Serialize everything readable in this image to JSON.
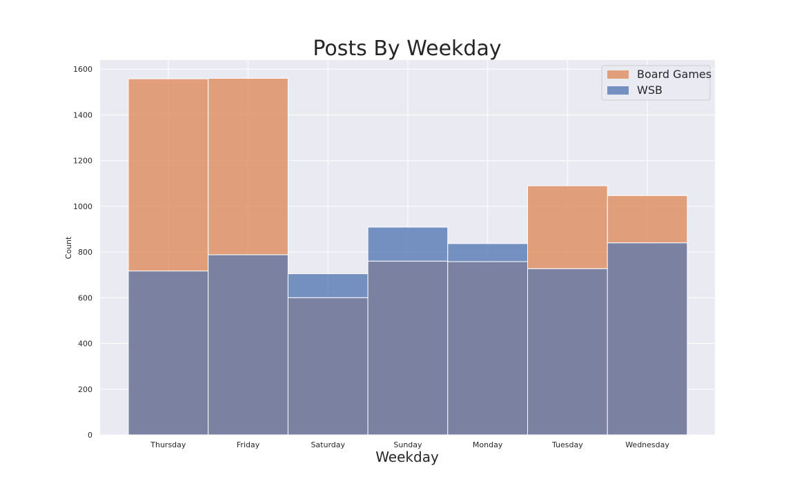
{
  "chart_data": {
    "type": "bar",
    "title": "Posts By Weekday",
    "xlabel": "Weekday",
    "ylabel": "Count",
    "categories": [
      "Thursday",
      "Friday",
      "Saturday",
      "Sunday",
      "Monday",
      "Tuesday",
      "Wednesday"
    ],
    "series": [
      {
        "name": "Board Games",
        "color": "#dd8452",
        "values": [
          1558,
          1560,
          600,
          760,
          758,
          1090,
          1047
        ]
      },
      {
        "name": "WSB",
        "color": "#4c72b0",
        "values": [
          717,
          788,
          705,
          909,
          837,
          727,
          840
        ]
      }
    ],
    "ylim": [
      0,
      1640
    ],
    "yticks": [
      0,
      200,
      400,
      600,
      800,
      1000,
      1200,
      1400,
      1600
    ],
    "grid": true,
    "legend_position": "top-right",
    "background_color": "#eaeaf2",
    "overlap_color": "#7a81a1"
  }
}
